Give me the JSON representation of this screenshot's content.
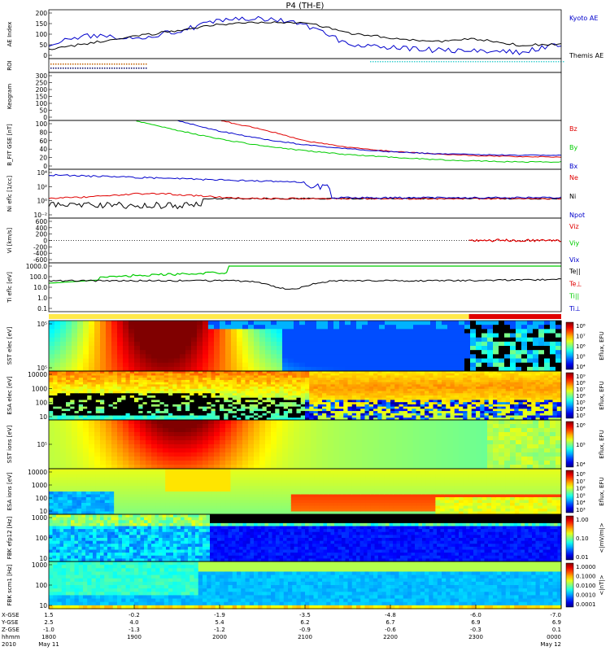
{
  "title": "P4 (TH-E)",
  "colors": {
    "kyoto": "#0000cc",
    "themis": "#000000",
    "red": "#e00000",
    "green": "#00cc00",
    "blue": "#0000cc",
    "band_yellow": "#ffe94a",
    "band_red": "#e00000"
  },
  "x_axis": {
    "rows": [
      {
        "label": "X-GSE",
        "values": [
          "1.5",
          "-0.2",
          "-1.9",
          "-3.5",
          "-4.8",
          "-6.0",
          "-7.0"
        ]
      },
      {
        "label": "Y-GSE",
        "values": [
          "2.5",
          "4.0",
          "5.4",
          "6.2",
          "6.7",
          "6.9",
          "6.9"
        ]
      },
      {
        "label": "Z-GSE",
        "values": [
          "-1.0",
          "-1.3",
          "-1.2",
          "-0.9",
          "-0.6",
          "-0.3",
          "0.1"
        ]
      },
      {
        "label": "hhmm",
        "values": [
          "1800",
          "1900",
          "2000",
          "2100",
          "2200",
          "2300",
          "0000"
        ]
      },
      {
        "label": "2010",
        "values": [
          "May 11",
          "",
          "",
          "",
          "",
          "",
          "May 12"
        ]
      }
    ]
  },
  "panels": [
    {
      "id": "ae",
      "ylabel": "AE Index",
      "ticks": [
        "200",
        "150",
        "100",
        "50",
        "0"
      ],
      "right": [
        "Kyoto AE",
        "Themis AE"
      ]
    },
    {
      "id": "roi",
      "ylabel": "ROI",
      "ticks": [],
      "right": []
    },
    {
      "id": "keogram",
      "ylabel": "Keogram",
      "ticks": [
        "300",
        "250",
        "200",
        "150",
        "100",
        "50",
        "0"
      ],
      "right": []
    },
    {
      "id": "bfgm",
      "ylabel": "B_FIT GSE [nT]",
      "ticks": [
        "100",
        "80",
        "60",
        "40",
        "20",
        "0"
      ],
      "right": [
        "Bz",
        "By",
        "Bx"
      ]
    },
    {
      "id": "ni",
      "ylabel": "Ni eflc [1/cc]",
      "ticks": [
        "10⁴",
        "10²",
        "10⁰",
        "10⁻²"
      ],
      "right": [
        "Ne",
        "Ni",
        "Npot"
      ]
    },
    {
      "id": "vi",
      "ylabel": "Vi [km/s]",
      "ticks": [
        "600",
        "400",
        "200",
        "0",
        "-200",
        "-400",
        "-600"
      ],
      "right": [
        "Viz",
        "Viy",
        "Vix"
      ]
    },
    {
      "id": "ti",
      "ylabel": "Ti eflc [eV]",
      "ticks": [
        "1000.0",
        "100.0",
        "10.0",
        "1.0",
        "0.1"
      ],
      "right": [
        "Te||",
        "Te⊥",
        "Ti||",
        "Ti⊥"
      ]
    },
    {
      "id": "sst_e",
      "ylabel": "SST elec [eV]",
      "ticks": [
        "10⁵",
        "10⁵"
      ],
      "cbar": [
        "10⁸",
        "10⁷",
        "10⁶",
        "10⁵",
        "10⁴"
      ],
      "cbar_label": "Eflux, EFU"
    },
    {
      "id": "esa_e",
      "ylabel": "ESA elec [eV]",
      "ticks": [
        "10000",
        "1000",
        "100",
        "10"
      ],
      "cbar": [
        "10⁹",
        "10⁸",
        "10⁷",
        "10⁶",
        "10⁵",
        "10⁴",
        "10³"
      ],
      "cbar_label": "Eflux, EFU"
    },
    {
      "id": "sst_i",
      "ylabel": "SST ions [eV]",
      "ticks": [
        "10⁵"
      ],
      "cbar": [
        "10⁶",
        "10⁵",
        "10⁴"
      ],
      "cbar_label": "Eflux, EFU"
    },
    {
      "id": "esa_i",
      "ylabel": "ESA ions [eV]",
      "ticks": [
        "10000",
        "1000",
        "100",
        "10"
      ],
      "cbar": [
        "10⁸",
        "10⁷",
        "10⁶",
        "10⁵",
        "10⁴",
        "10³"
      ],
      "cbar_label": "Eflux, EFU"
    },
    {
      "id": "fbk_e",
      "ylabel": "FBK efp12 [Hz]",
      "ticks": [
        "1000",
        "100",
        "10"
      ],
      "cbar": [
        "1.00",
        "0.10",
        "0.01"
      ],
      "cbar_label": "<|mV/m|>"
    },
    {
      "id": "fbk_s",
      "ylabel": "FBK scm1 [Hz]",
      "ticks": [
        "1000",
        "100",
        "10"
      ],
      "cbar": [
        "1.0000",
        "0.1000",
        "0.0100",
        "0.0010",
        "0.0001"
      ],
      "cbar_label": "<|nT|>"
    }
  ],
  "chart_data": {
    "type": "line",
    "title": "P4 (TH-E)",
    "x": [
      "1800",
      "1830",
      "1900",
      "1930",
      "2000",
      "2030",
      "2100",
      "2130",
      "2200",
      "2230",
      "2300",
      "2330",
      "0000"
    ],
    "series": [
      {
        "name": "Kyoto AE",
        "values": [
          60,
          95,
          85,
          110,
          155,
          165,
          140,
          60,
          45,
          35,
          30,
          25,
          60
        ]
      },
      {
        "name": "Themis AE",
        "values": [
          35,
          65,
          90,
          115,
          140,
          150,
          150,
          105,
          85,
          70,
          80,
          55,
          60
        ]
      },
      {
        "name": "Bz",
        "values": [
          null,
          null,
          null,
          null,
          100,
          82,
          58,
          45,
          37,
          32,
          28,
          26,
          25
        ]
      },
      {
        "name": "By",
        "values": [
          null,
          null,
          100,
          80,
          62,
          48,
          38,
          30,
          25,
          20,
          17,
          15,
          15
        ]
      },
      {
        "name": "Bx",
        "values": [
          null,
          null,
          null,
          100,
          78,
          62,
          50,
          42,
          36,
          32,
          30,
          29,
          29
        ]
      }
    ],
    "panels_ylim": {
      "ae": [
        0,
        200
      ],
      "bfgm": [
        0,
        100
      ],
      "vi": [
        -600,
        600
      ],
      "keogram": [
        0,
        300
      ]
    }
  }
}
